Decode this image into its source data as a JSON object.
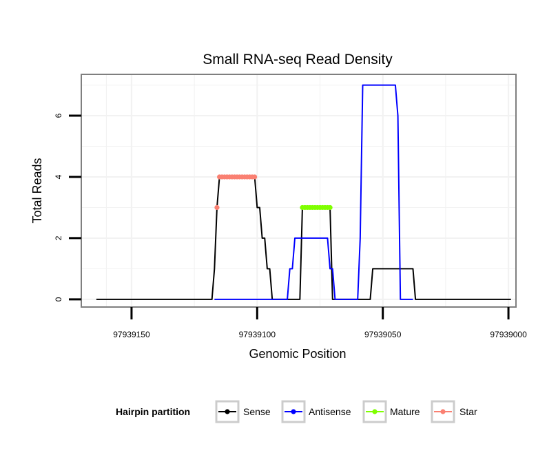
{
  "chart_data": {
    "type": "line",
    "title": "Small RNA-seq Read Density",
    "xlabel": "Genomic Position",
    "ylabel": "Total Reads",
    "x_reversed": true,
    "xlim": [
      97939170,
      97938997
    ],
    "ylim": [
      -0.25,
      7.35
    ],
    "x_ticks": [
      97939150,
      97939100,
      97939050,
      97939000
    ],
    "x_tick_labels": [
      "97939150",
      "97939100",
      "97939050",
      "97939000"
    ],
    "y_ticks": [
      0,
      2,
      4,
      6
    ],
    "y_tick_labels": [
      "0",
      "2",
      "4",
      "6"
    ],
    "grid": true,
    "legend": {
      "title": "Hairpin partition",
      "position": "bottom",
      "entries": [
        {
          "name": "Sense",
          "color": "#000000"
        },
        {
          "name": "Antisense",
          "color": "#0000ff"
        },
        {
          "name": "Mature",
          "color": "#7fff00"
        },
        {
          "name": "Star",
          "color": "#fa8072"
        }
      ]
    },
    "series": [
      {
        "name": "Sense",
        "color": "#000000",
        "style": "line",
        "points": [
          [
            97939164,
            0
          ],
          [
            97939118,
            0
          ],
          [
            97939117,
            1
          ],
          [
            97939116,
            3
          ],
          [
            97939115,
            4
          ],
          [
            97939101,
            4
          ],
          [
            97939100,
            3
          ],
          [
            97939099,
            3
          ],
          [
            97939098,
            2
          ],
          [
            97939097,
            2
          ],
          [
            97939096,
            1
          ],
          [
            97939095,
            1
          ],
          [
            97939094,
            0
          ],
          [
            97939083,
            0
          ],
          [
            97939082,
            3
          ],
          [
            97939071,
            3
          ],
          [
            97939070,
            0
          ],
          [
            97939060,
            0
          ],
          [
            97939055,
            0
          ],
          [
            97939054,
            1
          ],
          [
            97939038,
            1
          ],
          [
            97939037,
            0
          ],
          [
            97938999,
            0
          ]
        ]
      },
      {
        "name": "Antisense",
        "color": "#0000ff",
        "style": "line",
        "points": [
          [
            97939117,
            0
          ],
          [
            97939088,
            0
          ],
          [
            97939087,
            1
          ],
          [
            97939086,
            1
          ],
          [
            97939085,
            2
          ],
          [
            97939072,
            2
          ],
          [
            97939071,
            1
          ],
          [
            97939070,
            1
          ],
          [
            97939069,
            0
          ],
          [
            97939060,
            0
          ],
          [
            97939059,
            2
          ],
          [
            97939058,
            7
          ],
          [
            97939045,
            7
          ],
          [
            97939044,
            6
          ],
          [
            97939043,
            0
          ],
          [
            97939038,
            0
          ]
        ]
      },
      {
        "name": "Mature",
        "color": "#7fff00",
        "style": "points",
        "points": [
          [
            97939082,
            3
          ],
          [
            97939081,
            3
          ],
          [
            97939080,
            3
          ],
          [
            97939079,
            3
          ],
          [
            97939078,
            3
          ],
          [
            97939077,
            3
          ],
          [
            97939076,
            3
          ],
          [
            97939075,
            3
          ],
          [
            97939074,
            3
          ],
          [
            97939073,
            3
          ],
          [
            97939072,
            3
          ],
          [
            97939071,
            3
          ]
        ]
      },
      {
        "name": "Star",
        "color": "#fa8072",
        "style": "points",
        "points": [
          [
            97939116,
            3
          ],
          [
            97939115,
            4
          ],
          [
            97939114,
            4
          ],
          [
            97939113,
            4
          ],
          [
            97939112,
            4
          ],
          [
            97939111,
            4
          ],
          [
            97939110,
            4
          ],
          [
            97939109,
            4
          ],
          [
            97939108,
            4
          ],
          [
            97939107,
            4
          ],
          [
            97939106,
            4
          ],
          [
            97939105,
            4
          ],
          [
            97939104,
            4
          ],
          [
            97939103,
            4
          ],
          [
            97939102,
            4
          ],
          [
            97939101,
            4
          ]
        ]
      }
    ]
  }
}
